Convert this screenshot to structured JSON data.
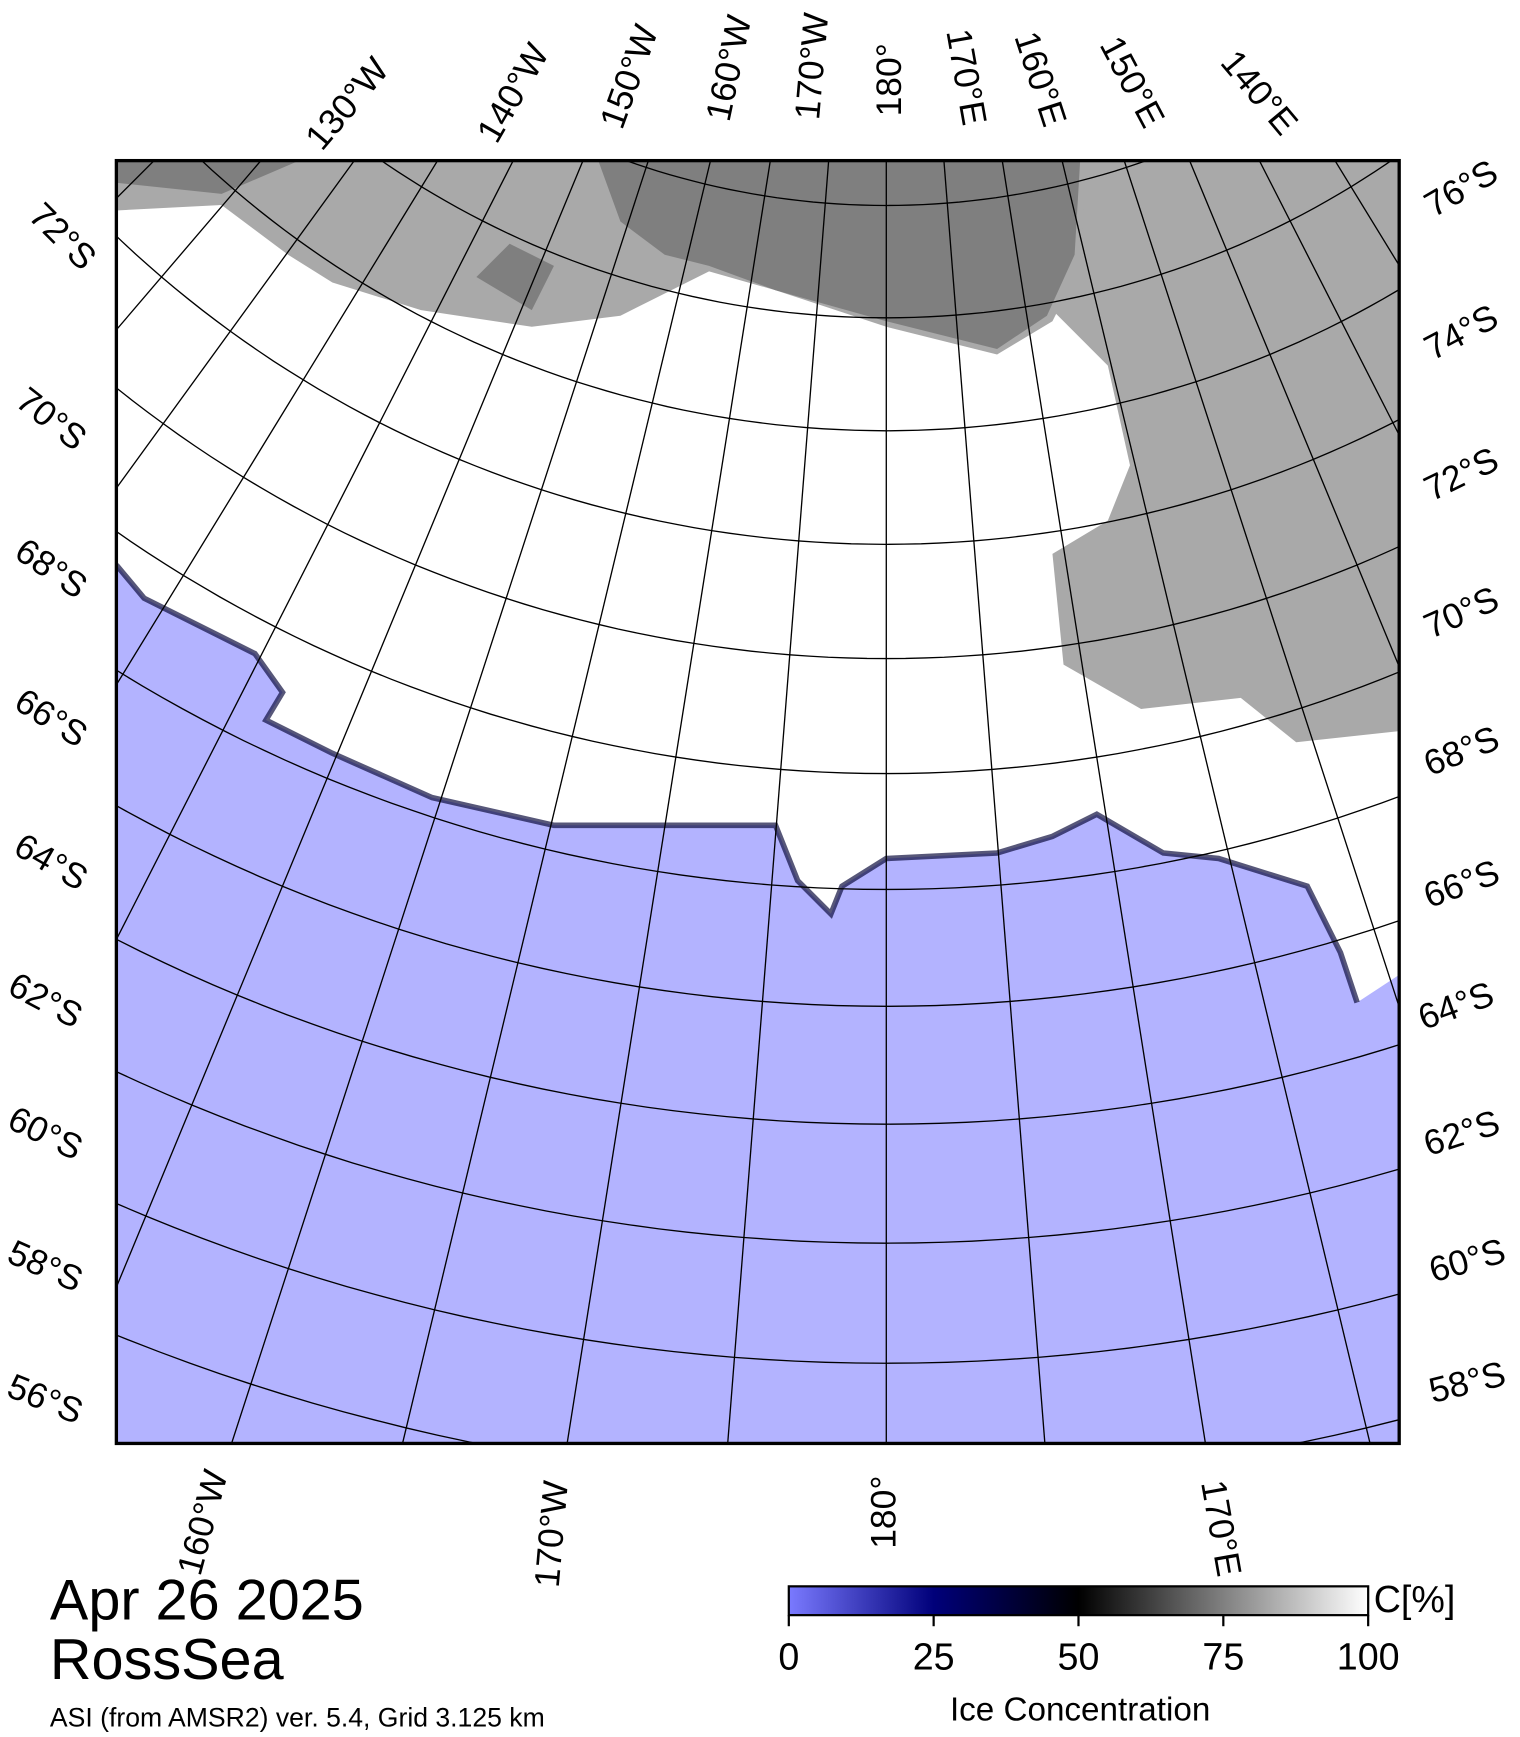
{
  "header": {
    "date": "Apr 26 2025",
    "region": "RossSea",
    "subtitle": "ASI (from AMSR2) ver. 5.4,  Grid 3.125 km"
  },
  "map": {
    "top_labels": [
      "130°W",
      "140°W",
      "150°W",
      "160°W",
      "170°W",
      "180°",
      "170°E",
      "160°E",
      "150°E",
      "140°E"
    ],
    "left_labels": [
      "72°S",
      "70°S",
      "68°S",
      "66°S",
      "64°S",
      "62°S",
      "60°S",
      "58°S",
      "56°S"
    ],
    "right_labels": [
      "76°S",
      "74°S",
      "72°S",
      "70°S",
      "68°S",
      "66°S",
      "64°S",
      "62°S",
      "60°S",
      "58°S"
    ],
    "bottom_labels": [
      "160°W",
      "170°W",
      "180°",
      "170°E"
    ]
  },
  "colorbar": {
    "ticks": [
      0,
      25,
      50,
      75,
      100
    ],
    "range": [
      0,
      100
    ],
    "unit": "C[%]",
    "label": "Ice Concentration"
  }
}
